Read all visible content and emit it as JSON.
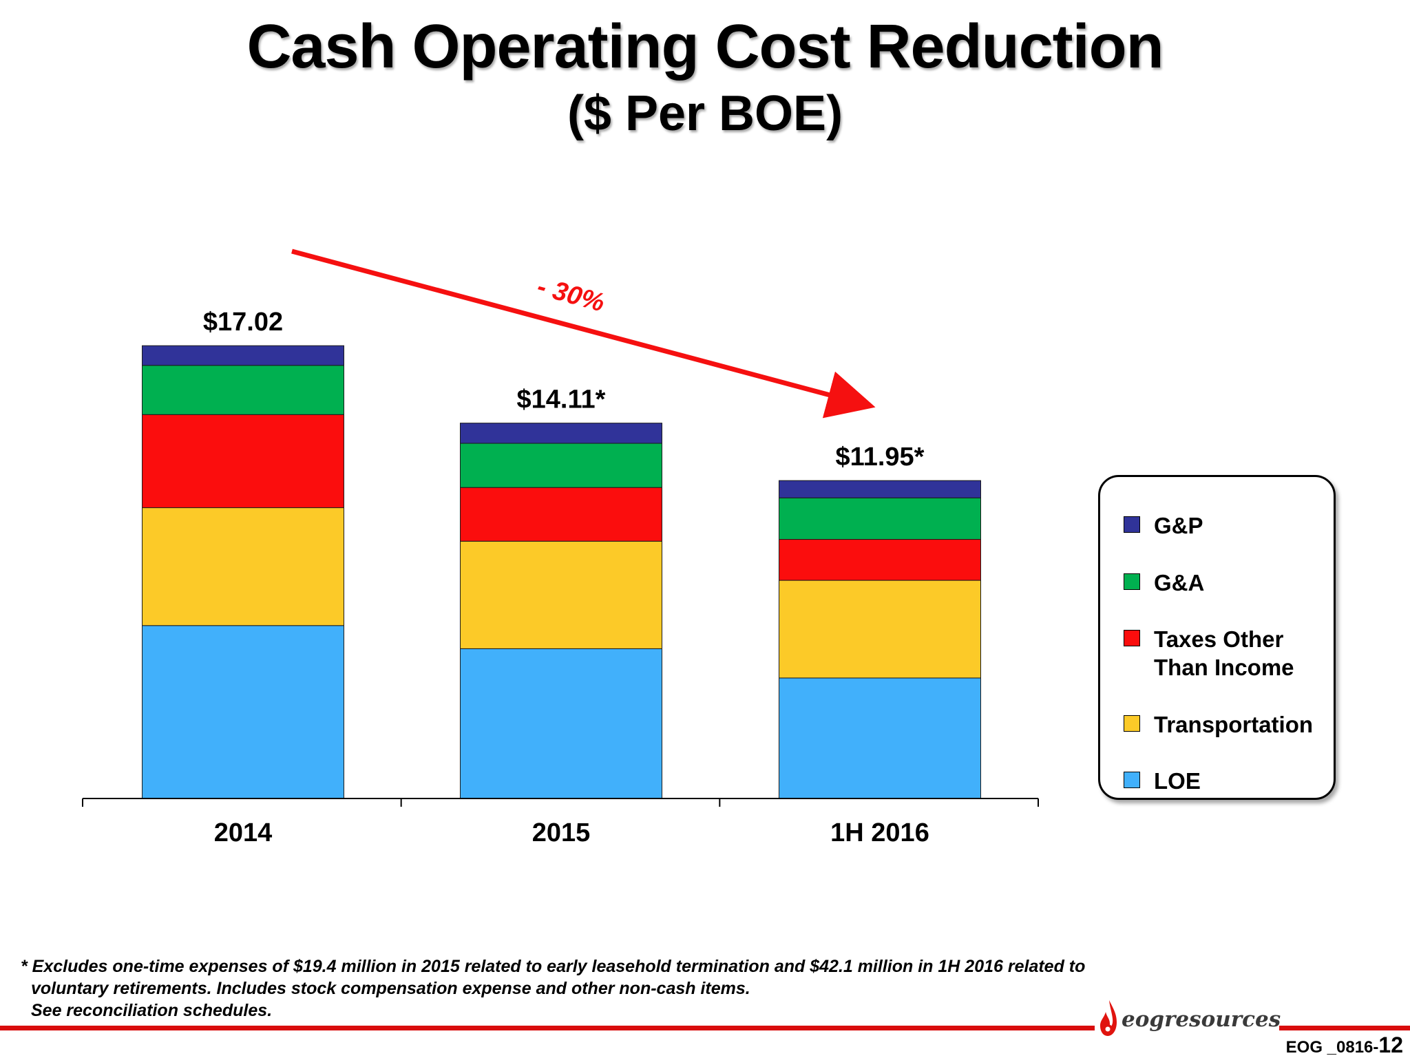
{
  "header": {
    "title": "Cash Operating Cost Reduction",
    "subtitle": "($ Per BOE)"
  },
  "chart_data": {
    "type": "bar",
    "stacked": true,
    "categories": [
      "2014",
      "2015",
      "1H 2016"
    ],
    "totals": [
      "$17.02",
      "$14.11*",
      "$11.95*"
    ],
    "ylim": [
      0,
      17.5
    ],
    "grid": false,
    "series": [
      {
        "name": "LOE",
        "color": "#41b0fb",
        "values": [
          6.5,
          5.63,
          4.53
        ]
      },
      {
        "name": "Transportation",
        "color": "#fcca28",
        "values": [
          4.43,
          4.04,
          3.67
        ]
      },
      {
        "name": "Taxes Other Than Income",
        "color": "#fb0d0d",
        "values": [
          3.5,
          2.02,
          1.54
        ]
      },
      {
        "name": "G&A",
        "color": "#00b050",
        "values": [
          1.85,
          1.66,
          1.56
        ]
      },
      {
        "name": "G&P",
        "color": "#303399",
        "values": [
          0.74,
          0.76,
          0.65
        ]
      }
    ],
    "annotation": {
      "text": "- 30%",
      "color": "#f51010"
    },
    "legend_placement": "right"
  },
  "legend": {
    "items": [
      {
        "label": "G&P",
        "color": "#303399"
      },
      {
        "label": "G&A",
        "color": "#00b050"
      },
      {
        "label": "Taxes Other Than Income",
        "color": "#fb0d0d"
      },
      {
        "label": "Transportation",
        "color": "#fcca28"
      },
      {
        "label": "LOE",
        "color": "#41b0fb"
      }
    ]
  },
  "footnote": {
    "line1": "* Excludes one-time expenses of $19.4 million in 2015 related to early leasehold termination and $42.1 million in 1H 2016 related to",
    "line2": "voluntary retirements. Includes stock compensation expense and other non-cash items.",
    "line3": "See reconciliation schedules."
  },
  "footer": {
    "logo_text": "eogresources",
    "slide_id_prefix": "EOG _0816-",
    "slide_id_number": "12",
    "bar_color": "#d90d0d"
  }
}
